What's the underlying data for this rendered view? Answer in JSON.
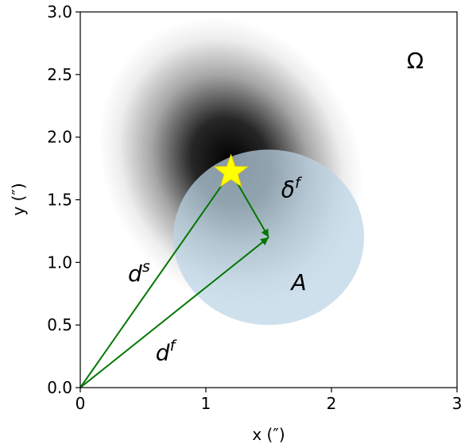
{
  "chart_data": {
    "type": "scatter",
    "xlabel": "x (″)",
    "ylabel": "y (″)",
    "xlim": [
      0,
      3
    ],
    "ylim": [
      0,
      3
    ],
    "x_ticks": [
      "0",
      "1",
      "2",
      "3"
    ],
    "y_ticks": [
      "0.0",
      "0.5",
      "1.0",
      "1.5",
      "2.0",
      "2.5",
      "3.0"
    ],
    "grid": false,
    "galaxy": {
      "x": 1.2,
      "y": 1.8,
      "sigma_x": 0.42,
      "sigma_y": 0.5,
      "rotation_deg": -28,
      "color": "#000000"
    },
    "aperture": {
      "label": "A",
      "x": 1.5,
      "y": 1.2,
      "radius_x": 0.76,
      "radius_y": 0.7,
      "color": "#bcd4e6"
    },
    "star": {
      "x": 1.2,
      "y": 1.72,
      "color": "#ffff00"
    },
    "origin": {
      "x": 0,
      "y": 0
    },
    "vectors": [
      {
        "name": "ds",
        "symbol": "d",
        "superscript": "s",
        "from": [
          0,
          0
        ],
        "to": [
          1.2,
          1.72
        ],
        "label_at": [
          0.38,
          0.85
        ]
      },
      {
        "name": "df",
        "symbol": "d",
        "superscript": "f",
        "from": [
          0,
          0
        ],
        "to": [
          1.5,
          1.2
        ],
        "label_at": [
          0.6,
          0.22
        ]
      },
      {
        "name": "delta-f",
        "symbol": "δ",
        "superscript": "f",
        "from": [
          1.2,
          1.72
        ],
        "to": [
          1.5,
          1.2
        ],
        "label_at": [
          1.6,
          1.52
        ]
      }
    ],
    "arrow_color": "#007700",
    "annotations": [
      {
        "text": "Ω",
        "x": 2.6,
        "y": 2.55
      },
      {
        "text": "A",
        "x": 1.68,
        "y": 0.78
      }
    ]
  }
}
